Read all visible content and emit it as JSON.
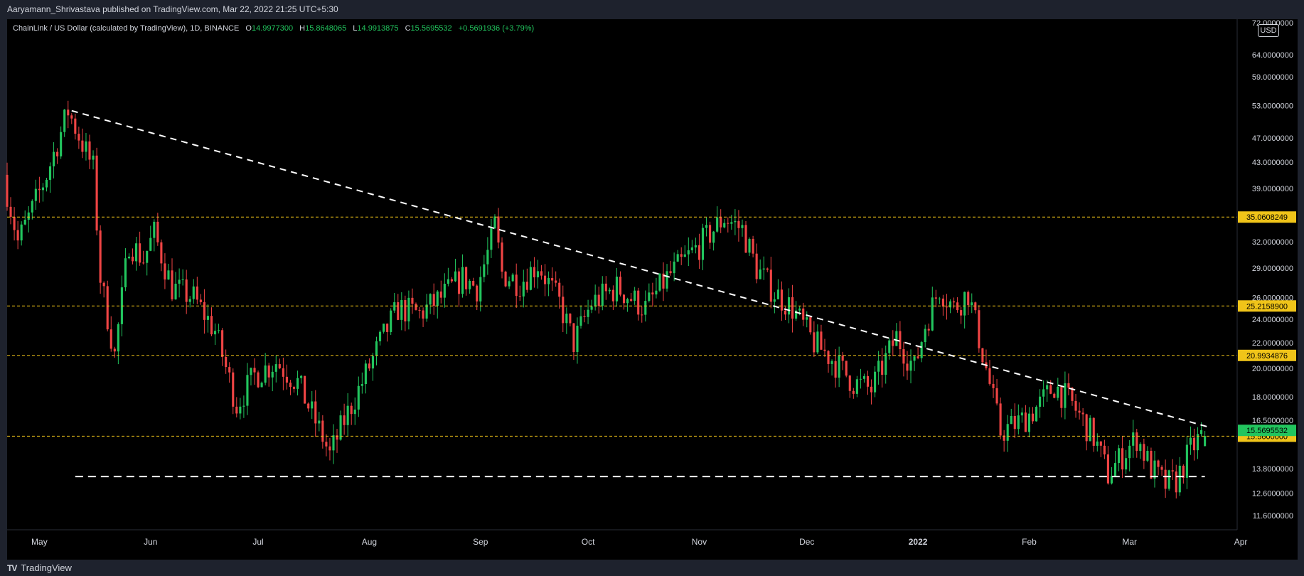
{
  "header": {
    "published_text": "Aaryamann_Shrivastava published on TradingView.com, Mar 22, 2022 21:25 UTC+5:30"
  },
  "legend": {
    "symbol": "ChainLink / US Dollar (calculated by TradingView), 1D, BINANCE",
    "open_label": "O",
    "open": "14.9977300",
    "high_label": "H",
    "high": "15.8648065",
    "low_label": "L",
    "low": "14.9913875",
    "close_label": "C",
    "close": "15.5695532",
    "change": "+0.5691936 (+3.79%)"
  },
  "currency_badge": "USD",
  "footer": {
    "brand": "TradingView",
    "brand_icon": "tradingview-logo-icon"
  },
  "colors": {
    "up": "#22c55e",
    "down": "#ef4444",
    "level": "#f0c419",
    "trendline": "#ffffff",
    "background": "#000000"
  },
  "chart_data": {
    "type": "candlestick",
    "scale": "log",
    "ylim": [
      11.0,
      73.0
    ],
    "x_range": [
      "2021-04-22",
      "2022-03-31"
    ],
    "y_ticks": [
      "72.0000000",
      "64.0000000",
      "59.0000000",
      "53.0000000",
      "47.0000000",
      "43.0000000",
      "39.0000000",
      "32.0000000",
      "29.0000000",
      "26.0000000",
      "24.0000000",
      "22.0000000",
      "20.0000000",
      "18.0000000",
      "16.5000000",
      "13.8000000",
      "12.6000000",
      "11.6000000"
    ],
    "x_ticks": [
      {
        "label": "May",
        "date": "2021-05-01"
      },
      {
        "label": "Jun",
        "date": "2021-06-01"
      },
      {
        "label": "Jul",
        "date": "2021-07-01"
      },
      {
        "label": "Aug",
        "date": "2021-08-01"
      },
      {
        "label": "Sep",
        "date": "2021-09-01"
      },
      {
        "label": "Oct",
        "date": "2021-10-01"
      },
      {
        "label": "Nov",
        "date": "2021-11-01"
      },
      {
        "label": "Dec",
        "date": "2021-12-01"
      },
      {
        "label": "2022",
        "date": "2022-01-01"
      },
      {
        "label": "Feb",
        "date": "2022-02-01"
      },
      {
        "label": "Mar",
        "date": "2022-03-01"
      },
      {
        "label": "Apr",
        "date": "2022-04-01"
      }
    ],
    "levels": [
      {
        "value": 35.0608249,
        "label": "35.0608249"
      },
      {
        "value": 25.21589,
        "label": "25.2158900"
      },
      {
        "value": 20.9934876,
        "label": "20.9934876"
      },
      {
        "value": 15.56,
        "label": "15.5600000"
      }
    ],
    "last_price": {
      "value": 15.5695532,
      "label": "15.5695532"
    },
    "support": {
      "value": 13.4,
      "from": "2021-05-11",
      "to": "2022-03-22"
    },
    "trendline": {
      "from_date": "2021-05-10",
      "from_value": 52.0,
      "to_date": "2022-03-23",
      "to_value": 16.1
    },
    "anchors": [
      [
        "2021-04-22",
        41.0
      ],
      [
        "2021-04-26",
        32.0
      ],
      [
        "2021-04-30",
        36.0
      ],
      [
        "2021-05-04",
        41.0
      ],
      [
        "2021-05-08",
        48.0
      ],
      [
        "2021-05-10",
        52.0
      ],
      [
        "2021-05-14",
        46.0
      ],
      [
        "2021-05-17",
        42.0
      ],
      [
        "2021-05-19",
        28.0
      ],
      [
        "2021-05-23",
        21.0
      ],
      [
        "2021-05-27",
        32.0
      ],
      [
        "2021-05-31",
        30.0
      ],
      [
        "2021-06-03",
        33.0
      ],
      [
        "2021-06-08",
        27.0
      ],
      [
        "2021-06-14",
        26.0
      ],
      [
        "2021-06-20",
        23.0
      ],
      [
        "2021-06-26",
        17.5
      ],
      [
        "2021-07-01",
        19.5
      ],
      [
        "2021-07-07",
        20.5
      ],
      [
        "2021-07-13",
        19.0
      ],
      [
        "2021-07-20",
        15.5
      ],
      [
        "2021-07-22",
        14.5
      ],
      [
        "2021-07-26",
        16.5
      ],
      [
        "2021-07-31",
        19.0
      ],
      [
        "2021-08-05",
        22.0
      ],
      [
        "2021-08-10",
        25.0
      ],
      [
        "2021-08-16",
        24.5
      ],
      [
        "2021-08-22",
        26.0
      ],
      [
        "2021-08-28",
        28.0
      ],
      [
        "2021-09-01",
        27.0
      ],
      [
        "2021-09-05",
        32.0
      ],
      [
        "2021-09-06",
        34.0
      ],
      [
        "2021-09-08",
        28.5
      ],
      [
        "2021-09-13",
        27.5
      ],
      [
        "2021-09-18",
        29.5
      ],
      [
        "2021-09-24",
        25.5
      ],
      [
        "2021-09-28",
        22.0
      ],
      [
        "2021-10-03",
        25.5
      ],
      [
        "2021-10-10",
        27.0
      ],
      [
        "2021-10-18",
        25.0
      ],
      [
        "2021-10-24",
        28.0
      ],
      [
        "2021-10-28",
        29.5
      ],
      [
        "2021-11-03",
        32.0
      ],
      [
        "2021-11-09",
        35.0
      ],
      [
        "2021-11-14",
        33.5
      ],
      [
        "2021-11-18",
        29.0
      ],
      [
        "2021-11-23",
        26.5
      ],
      [
        "2021-11-28",
        25.0
      ],
      [
        "2021-12-04",
        22.0
      ],
      [
        "2021-12-08",
        21.0
      ],
      [
        "2021-12-15",
        19.0
      ],
      [
        "2021-12-20",
        18.5
      ],
      [
        "2021-12-27",
        22.5
      ],
      [
        "2022-01-01",
        20.0
      ],
      [
        "2022-01-04",
        23.5
      ],
      [
        "2022-01-08",
        27.0
      ],
      [
        "2022-01-12",
        25.0
      ],
      [
        "2022-01-16",
        26.5
      ],
      [
        "2022-01-21",
        20.0
      ],
      [
        "2022-01-25",
        15.8
      ],
      [
        "2022-01-31",
        16.5
      ],
      [
        "2022-02-05",
        17.5
      ],
      [
        "2022-02-09",
        18.8
      ],
      [
        "2022-02-14",
        17.5
      ],
      [
        "2022-02-20",
        15.5
      ],
      [
        "2022-02-24",
        13.5
      ],
      [
        "2022-02-28",
        14.5
      ],
      [
        "2022-03-04",
        15.5
      ],
      [
        "2022-03-08",
        13.8
      ],
      [
        "2022-03-12",
        13.0
      ],
      [
        "2022-03-15",
        13.2
      ],
      [
        "2022-03-19",
        14.8
      ],
      [
        "2022-03-22",
        15.57
      ]
    ]
  }
}
